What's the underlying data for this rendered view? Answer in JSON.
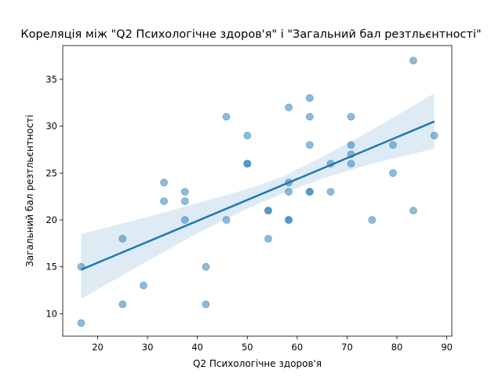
{
  "chart_data": {
    "type": "scatter",
    "title": "Кореляція між \"Q2 Психологічне здоров'я\" і \"Загальний бал резтльєнтності\"",
    "xlabel": "Q2 Психологічне здоров'я",
    "ylabel": "Загальний бал резтльєнтності",
    "xlim": [
      13,
      91
    ],
    "ylim": [
      7.6,
      38.6
    ],
    "xticks": [
      20,
      30,
      40,
      50,
      60,
      70,
      80,
      90
    ],
    "yticks": [
      10,
      15,
      20,
      25,
      30,
      35
    ],
    "grid": false,
    "colors": {
      "points": "#1f77b4",
      "line": "#1f77b4",
      "band": "#1f77b4"
    },
    "points": [
      {
        "x": 16.7,
        "y": 15
      },
      {
        "x": 16.7,
        "y": 9
      },
      {
        "x": 25,
        "y": 18
      },
      {
        "x": 25,
        "y": 11
      },
      {
        "x": 29.2,
        "y": 13
      },
      {
        "x": 33.3,
        "y": 24
      },
      {
        "x": 33.3,
        "y": 22
      },
      {
        "x": 37.5,
        "y": 23
      },
      {
        "x": 37.5,
        "y": 22
      },
      {
        "x": 37.5,
        "y": 20
      },
      {
        "x": 41.7,
        "y": 15
      },
      {
        "x": 41.7,
        "y": 11
      },
      {
        "x": 45.8,
        "y": 31
      },
      {
        "x": 45.8,
        "y": 20
      },
      {
        "x": 50,
        "y": 29
      },
      {
        "x": 50,
        "y": 26
      },
      {
        "x": 50,
        "y": 26
      },
      {
        "x": 54.2,
        "y": 21
      },
      {
        "x": 54.2,
        "y": 21
      },
      {
        "x": 54.2,
        "y": 18
      },
      {
        "x": 58.3,
        "y": 32
      },
      {
        "x": 58.3,
        "y": 24
      },
      {
        "x": 58.3,
        "y": 23
      },
      {
        "x": 58.3,
        "y": 20
      },
      {
        "x": 58.3,
        "y": 20
      },
      {
        "x": 62.5,
        "y": 33
      },
      {
        "x": 62.5,
        "y": 31
      },
      {
        "x": 62.5,
        "y": 28
      },
      {
        "x": 62.5,
        "y": 23
      },
      {
        "x": 62.5,
        "y": 23
      },
      {
        "x": 66.7,
        "y": 26
      },
      {
        "x": 66.7,
        "y": 23
      },
      {
        "x": 70.8,
        "y": 31
      },
      {
        "x": 70.8,
        "y": 28
      },
      {
        "x": 70.8,
        "y": 27
      },
      {
        "x": 70.8,
        "y": 26
      },
      {
        "x": 75,
        "y": 20
      },
      {
        "x": 79.2,
        "y": 28
      },
      {
        "x": 79.2,
        "y": 25
      },
      {
        "x": 83.3,
        "y": 37
      },
      {
        "x": 83.3,
        "y": 21
      },
      {
        "x": 87.5,
        "y": 29
      }
    ],
    "regression": {
      "x_start": 16.7,
      "y_start": 14.7,
      "x_end": 87.5,
      "y_end": 30.5,
      "band_upper": [
        {
          "x": 16.7,
          "y": 18.5
        },
        {
          "x": 30,
          "y": 20.3
        },
        {
          "x": 40,
          "y": 21.8
        },
        {
          "x": 50,
          "y": 23.3
        },
        {
          "x": 57,
          "y": 24.6
        },
        {
          "x": 65,
          "y": 26.7
        },
        {
          "x": 75,
          "y": 29.6
        },
        {
          "x": 87.5,
          "y": 33.5
        }
      ],
      "band_lower": [
        {
          "x": 87.5,
          "y": 27.6
        },
        {
          "x": 75,
          "y": 26.0
        },
        {
          "x": 65,
          "y": 24.4
        },
        {
          "x": 57,
          "y": 22.8
        },
        {
          "x": 50,
          "y": 21.2
        },
        {
          "x": 40,
          "y": 18.6
        },
        {
          "x": 30,
          "y": 15.6
        },
        {
          "x": 16.7,
          "y": 11.6
        }
      ]
    }
  }
}
